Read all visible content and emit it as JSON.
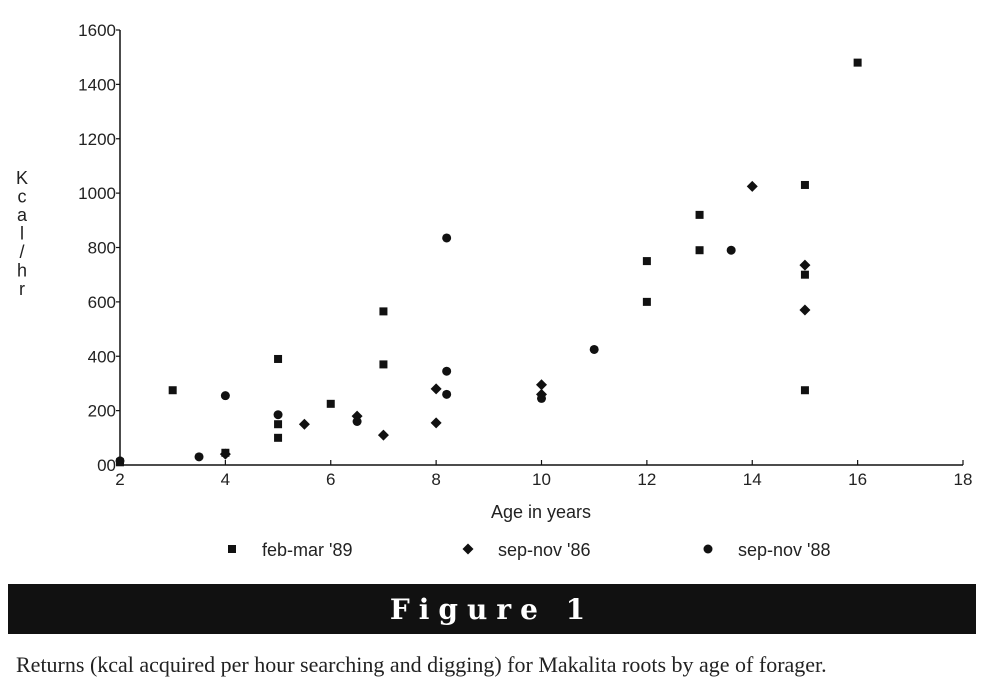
{
  "chart_data": {
    "type": "scatter",
    "title": "",
    "xlabel": "Age in years",
    "ylabel": "K c a l / h r",
    "xlim": [
      2,
      18
    ],
    "ylim": [
      0,
      1600
    ],
    "x_ticks": [
      2,
      4,
      6,
      8,
      10,
      12,
      14,
      16,
      18
    ],
    "y_ticks": [
      0,
      200,
      400,
      600,
      800,
      1000,
      1200,
      1400,
      1600
    ],
    "y_tick_labels": [
      "00",
      "200",
      "400",
      "600",
      "800",
      "1000",
      "1200",
      "1400",
      "1600"
    ],
    "grid": false,
    "legend_position": "bottom",
    "series": [
      {
        "name": "feb-mar '89",
        "marker": "square",
        "x": [
          2,
          3,
          4,
          5,
          5,
          5,
          6,
          7,
          7,
          12,
          12,
          13,
          13,
          15,
          15,
          15,
          16
        ],
        "y": [
          10,
          275,
          45,
          390,
          150,
          100,
          225,
          565,
          370,
          750,
          600,
          920,
          790,
          1030,
          700,
          275,
          1480
        ]
      },
      {
        "name": "sep-nov '86",
        "marker": "diamond",
        "x": [
          4,
          5.5,
          6.5,
          7,
          8,
          8,
          10,
          10,
          14,
          15,
          15
        ],
        "y": [
          40,
          150,
          180,
          110,
          280,
          155,
          295,
          260,
          1025,
          735,
          570
        ]
      },
      {
        "name": "sep-nov '88",
        "marker": "circle",
        "x": [
          2,
          3.5,
          4,
          5,
          6.5,
          8.2,
          8.2,
          8.2,
          10,
          11,
          13.6
        ],
        "y": [
          15,
          30,
          255,
          185,
          160,
          835,
          345,
          260,
          245,
          425,
          790
        ]
      }
    ]
  },
  "figure_label": "Figure 1",
  "caption": "Returns (kcal acquired per hour searching and digging) for Makalita roots by age of forager."
}
